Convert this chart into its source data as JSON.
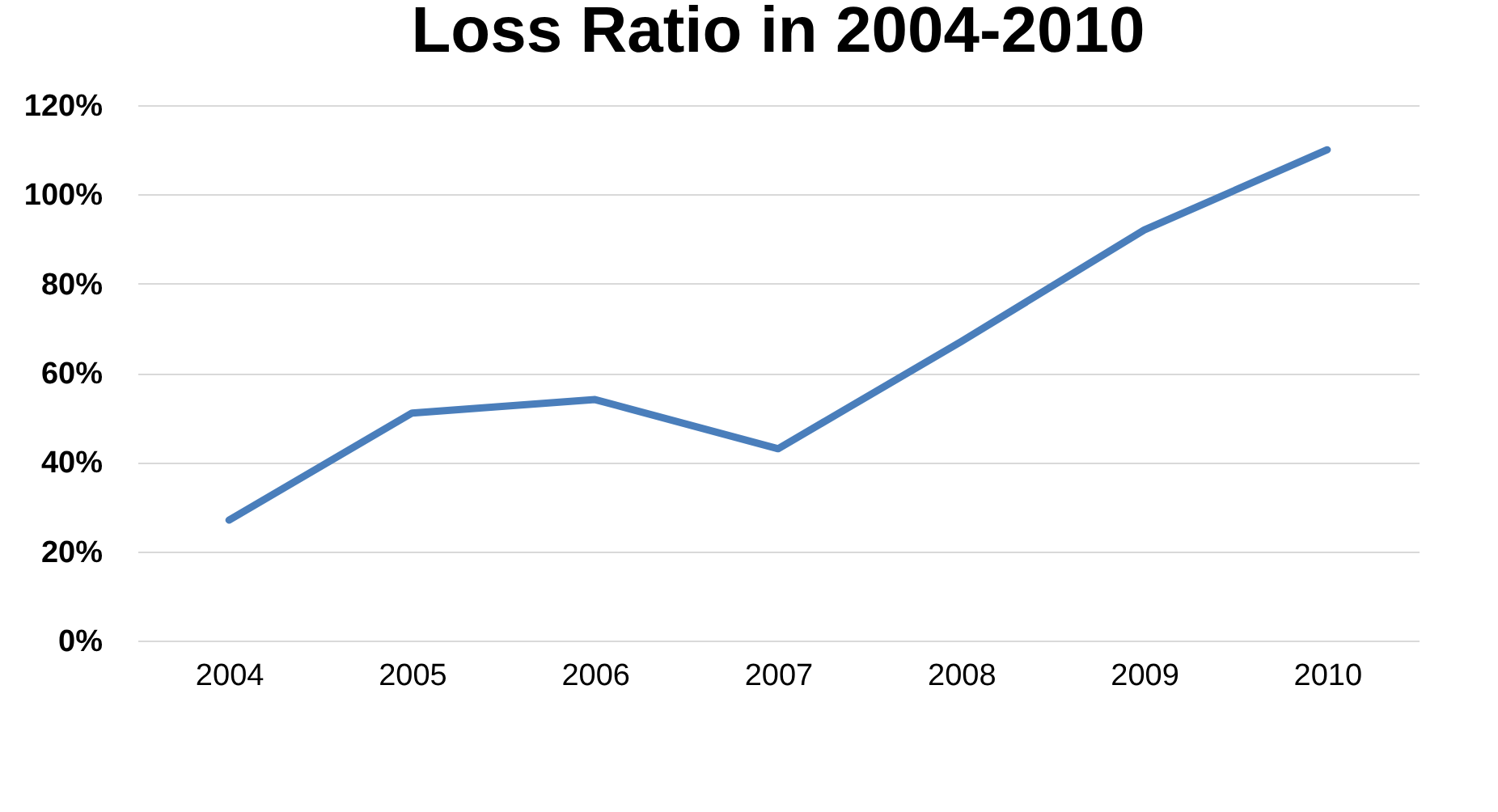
{
  "chart_data": {
    "type": "line",
    "title": "Loss Ratio in 2004-2010",
    "categories": [
      "2004",
      "2005",
      "2006",
      "2007",
      "2008",
      "2009",
      "2010"
    ],
    "series": [
      {
        "color": "#4a7ebb",
        "values": [
          27,
          51,
          54,
          43,
          67,
          92,
          110
        ]
      }
    ],
    "ylim": [
      0,
      120
    ],
    "yticks": [
      {
        "value": 0,
        "label": "0%"
      },
      {
        "value": 20,
        "label": "20%"
      },
      {
        "value": 40,
        "label": "40%"
      },
      {
        "value": 60,
        "label": "60%"
      },
      {
        "value": 80,
        "label": "80%"
      },
      {
        "value": 100,
        "label": "100%"
      },
      {
        "value": 120,
        "label": "120%"
      }
    ],
    "grid": "y",
    "legend": false,
    "marker": "none",
    "line_style": "solid"
  }
}
